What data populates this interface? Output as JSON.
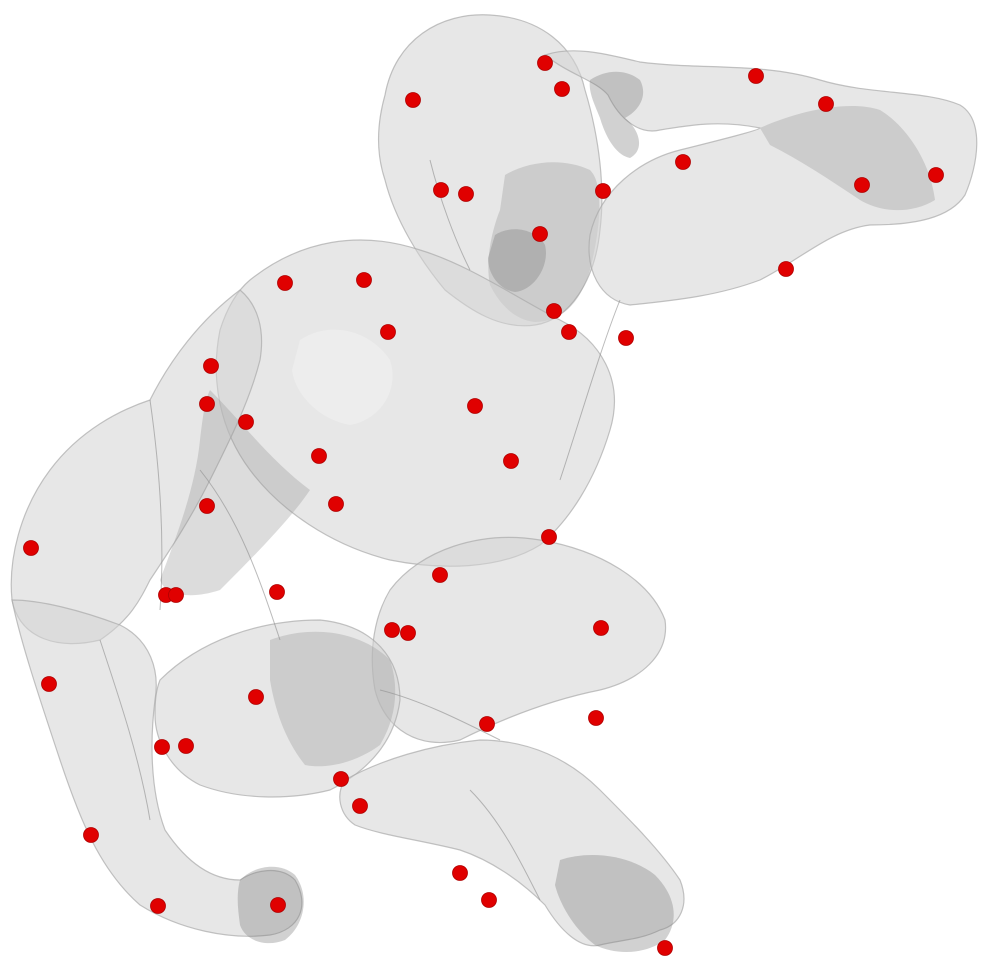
{
  "figure": {
    "model_color": "#d3d3d3",
    "keypoint_color": "#e00000",
    "keypoints": [
      {
        "id": 1
      },
      {
        "id": 2
      },
      {
        "id": 3
      },
      {
        "id": 4
      },
      {
        "id": 5
      },
      {
        "id": 6
      },
      {
        "id": 7
      },
      {
        "id": 8
      },
      {
        "id": 9
      },
      {
        "id": 10
      },
      {
        "id": 11
      },
      {
        "id": 12
      },
      {
        "id": 13
      },
      {
        "id": 14
      },
      {
        "id": 15
      },
      {
        "id": 16
      },
      {
        "id": 17
      },
      {
        "id": 18
      },
      {
        "id": 19
      },
      {
        "id": 20
      },
      {
        "id": 21
      },
      {
        "id": 22
      },
      {
        "id": 23
      },
      {
        "id": 24
      },
      {
        "id": 25
      },
      {
        "id": 26
      },
      {
        "id": 27
      },
      {
        "id": 28
      },
      {
        "id": 29
      },
      {
        "id": 30
      },
      {
        "id": 31
      },
      {
        "id": 32
      },
      {
        "id": 33
      },
      {
        "id": 34
      },
      {
        "id": 35
      },
      {
        "id": 36
      },
      {
        "id": 37
      },
      {
        "id": 38
      },
      {
        "id": 39
      },
      {
        "id": 40
      },
      {
        "id": 41
      },
      {
        "id": 42
      },
      {
        "id": 43
      },
      {
        "id": 44
      },
      {
        "id": 45
      },
      {
        "id": 46
      },
      {
        "id": 47
      },
      {
        "id": 48
      },
      {
        "id": 49
      },
      {
        "id": 50
      },
      {
        "id": 51
      },
      {
        "id": 52
      },
      {
        "id": 53
      },
      {
        "id": 54
      },
      {
        "id": 55
      },
      {
        "id": 56
      },
      {
        "id": 57
      }
    ]
  }
}
